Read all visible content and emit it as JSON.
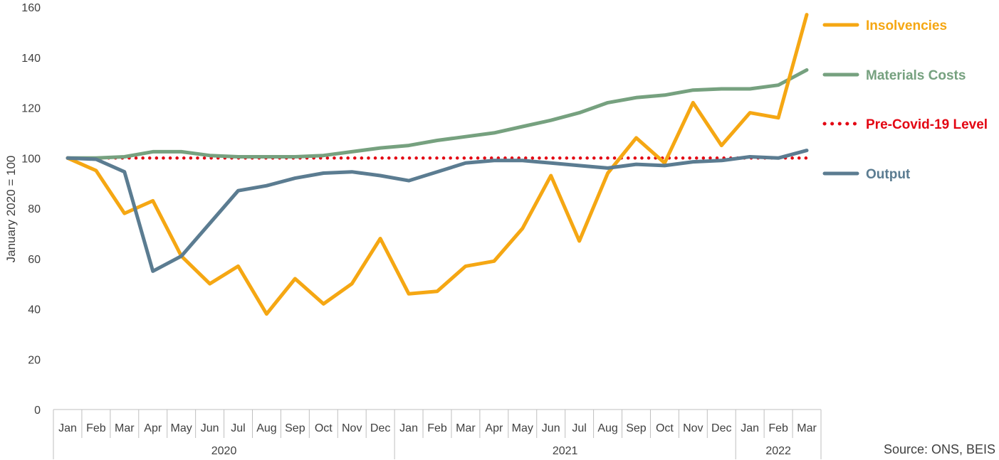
{
  "chart_data": {
    "type": "line",
    "ylabel": "January 2020 = 100",
    "ylim": [
      0,
      160
    ],
    "yticks": [
      "0",
      "20",
      "40",
      "60",
      "80",
      "100",
      "120",
      "140",
      "160"
    ],
    "categories": [
      "Jan",
      "Feb",
      "Mar",
      "Apr",
      "May",
      "Jun",
      "Jul",
      "Aug",
      "Sep",
      "Oct",
      "Nov",
      "Dec",
      "Jan",
      "Feb",
      "Mar",
      "Apr",
      "May",
      "Jun",
      "Jul",
      "Aug",
      "Sep",
      "Oct",
      "Nov",
      "Dec",
      "Jan",
      "Feb",
      "Mar"
    ],
    "year_groups": [
      {
        "label": "2020",
        "count": 12
      },
      {
        "label": "2021",
        "count": 12
      },
      {
        "label": "2022",
        "count": 3
      }
    ],
    "series": [
      {
        "name": "Insolvencies",
        "color": "#F5A713",
        "style": "solid",
        "values": [
          100,
          95,
          78,
          83,
          61,
          50,
          57,
          38,
          52,
          42,
          50,
          68,
          46,
          47,
          57,
          59,
          72,
          93,
          67,
          94,
          108,
          98,
          122,
          105,
          118,
          116,
          157
        ]
      },
      {
        "name": "Materials Costs",
        "color": "#76A17F",
        "style": "solid",
        "values": [
          100,
          100,
          100.5,
          102.5,
          102.5,
          101,
          100.5,
          100.5,
          100.5,
          101,
          102.5,
          104,
          105,
          107,
          108.5,
          110,
          112.5,
          115,
          118,
          122,
          124,
          125,
          127,
          127.5,
          127.5,
          129,
          135
        ]
      },
      {
        "name": "Pre-Covid-19 Level",
        "color": "#E30613",
        "style": "dotted",
        "values": [
          100,
          100,
          100,
          100,
          100,
          100,
          100,
          100,
          100,
          100,
          100,
          100,
          100,
          100,
          100,
          100,
          100,
          100,
          100,
          100,
          100,
          100,
          100,
          100,
          100,
          100,
          100
        ]
      },
      {
        "name": "Output",
        "color": "#5B7C91",
        "style": "solid",
        "values": [
          100,
          99.5,
          94.5,
          55,
          61,
          74,
          87,
          89,
          92,
          94,
          94.5,
          93,
          91,
          94.5,
          98,
          99,
          99,
          98,
          97,
          96,
          97.5,
          97,
          98.5,
          99,
          100.5,
          100,
          103
        ]
      }
    ],
    "legend_position": "right",
    "grid": false,
    "source": "Source: ONS, BEIS"
  }
}
